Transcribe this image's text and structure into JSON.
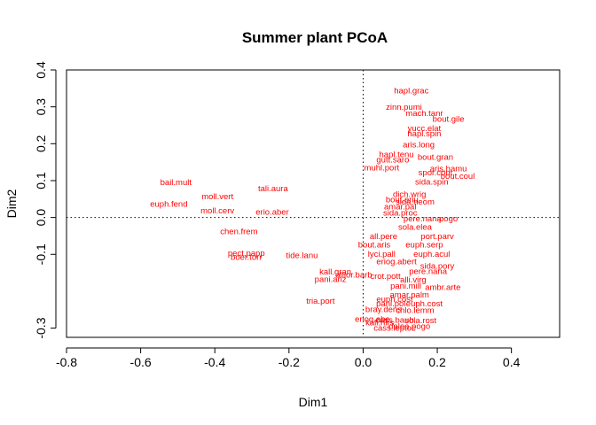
{
  "chart_data": {
    "type": "scatter",
    "title": "Summer plant PCoA",
    "xlabel": "Dim1",
    "ylabel": "Dim2",
    "xlim": [
      -0.8,
      0.53
    ],
    "ylim": [
      -0.325,
      0.4
    ],
    "xticks": [
      -0.8,
      -0.6,
      -0.4,
      -0.2,
      0.0,
      0.2,
      0.4
    ],
    "xtick_labels": [
      "-0.8",
      "-0.6",
      "-0.4",
      "-0.2",
      "0.0",
      "0.2",
      "0.4"
    ],
    "yticks": [
      -0.3,
      -0.1,
      0.0,
      0.1,
      0.2,
      0.3,
      0.4
    ],
    "ytick_labels": [
      "-0.3",
      "-0.1",
      "0.0",
      "0.1",
      "0.2",
      "0.3",
      "0.4"
    ],
    "reference_lines": {
      "x": 0,
      "y": 0,
      "style": "dotted"
    },
    "grid": false,
    "label_color": "#ff0000",
    "points": [
      {
        "label": "hapl.grac",
        "x": 0.13,
        "y": 0.345
      },
      {
        "label": "zinn.pumi",
        "x": 0.11,
        "y": 0.3
      },
      {
        "label": "mach.tanr",
        "x": 0.165,
        "y": 0.283
      },
      {
        "label": "bout.gile",
        "x": 0.23,
        "y": 0.268
      },
      {
        "label": "yucc.elat",
        "x": 0.165,
        "y": 0.243
      },
      {
        "label": "hapl.spin",
        "x": 0.165,
        "y": 0.228
      },
      {
        "label": "aris.long",
        "x": 0.15,
        "y": 0.198
      },
      {
        "label": "hapl.tenu",
        "x": 0.09,
        "y": 0.172
      },
      {
        "label": "gutt.saro",
        "x": 0.08,
        "y": 0.157
      },
      {
        "label": "bout.gran",
        "x": 0.195,
        "y": 0.165
      },
      {
        "label": "muhl.port",
        "x": 0.05,
        "y": 0.136
      },
      {
        "label": "aris.hamu",
        "x": 0.23,
        "y": 0.133
      },
      {
        "label": "spor.cont",
        "x": 0.195,
        "y": 0.123
      },
      {
        "label": "bout.coul",
        "x": 0.255,
        "y": 0.113
      },
      {
        "label": "sida.spin",
        "x": 0.185,
        "y": 0.097
      },
      {
        "label": "bail.mult",
        "x": -0.505,
        "y": 0.096
      },
      {
        "label": "tali.aura",
        "x": -0.243,
        "y": 0.079
      },
      {
        "label": "moll.vert",
        "x": -0.393,
        "y": 0.058
      },
      {
        "label": "dich.wrig",
        "x": 0.125,
        "y": 0.064
      },
      {
        "label": "bout.eriu",
        "x": 0.105,
        "y": 0.05
      },
      {
        "label": "sida.neom",
        "x": 0.14,
        "y": 0.044
      },
      {
        "label": "amar.pal",
        "x": 0.1,
        "y": 0.03
      },
      {
        "label": "euph.fend",
        "x": -0.524,
        "y": 0.038
      },
      {
        "label": "moll.cerv",
        "x": -0.393,
        "y": 0.02
      },
      {
        "label": "erio.aber",
        "x": -0.245,
        "y": 0.016
      },
      {
        "label": "sida.proc",
        "x": 0.1,
        "y": 0.013
      },
      {
        "label": "pere.nana",
        "x": 0.16,
        "y": -0.002
      },
      {
        "label": "pogo",
        "x": 0.23,
        "y": -0.002
      },
      {
        "label": "sola.elea",
        "x": 0.14,
        "y": -0.025
      },
      {
        "label": "chen.frem",
        "x": -0.335,
        "y": -0.037
      },
      {
        "label": "all.pere",
        "x": 0.055,
        "y": -0.05
      },
      {
        "label": "port.parv",
        "x": 0.2,
        "y": -0.05
      },
      {
        "label": "bout.aris",
        "x": 0.03,
        "y": -0.073
      },
      {
        "label": "euph.serp",
        "x": 0.165,
        "y": -0.073
      },
      {
        "label": "lyci.pall",
        "x": 0.05,
        "y": -0.098
      },
      {
        "label": "euph.acul",
        "x": 0.185,
        "y": -0.098
      },
      {
        "label": "pect.papp",
        "x": -0.315,
        "y": -0.096
      },
      {
        "label": "boer.torr",
        "x": -0.315,
        "y": -0.106
      },
      {
        "label": "tide.lanu",
        "x": -0.165,
        "y": -0.102
      },
      {
        "label": "eriog.abert",
        "x": 0.09,
        "y": -0.118
      },
      {
        "label": "sida.pory",
        "x": 0.2,
        "y": -0.13
      },
      {
        "label": "kall.gran",
        "x": -0.075,
        "y": -0.146
      },
      {
        "label": "allior.barb",
        "x": -0.025,
        "y": -0.155
      },
      {
        "label": "pani.ariz",
        "x": -0.088,
        "y": -0.167
      },
      {
        "label": "pere.nana",
        "x": 0.175,
        "y": -0.145
      },
      {
        "label": "crot.pott",
        "x": 0.06,
        "y": -0.158
      },
      {
        "label": "alli.virg",
        "x": 0.135,
        "y": -0.168
      },
      {
        "label": "pani.mill",
        "x": 0.115,
        "y": -0.185
      },
      {
        "label": "ambr.arte",
        "x": 0.215,
        "y": -0.188
      },
      {
        "label": "amar.palm",
        "x": 0.125,
        "y": -0.208
      },
      {
        "label": "euph.cost",
        "x": 0.085,
        "y": -0.22
      },
      {
        "label": "tria.port",
        "x": -0.115,
        "y": -0.225
      },
      {
        "label": "pani.pol",
        "x": 0.075,
        "y": -0.232
      },
      {
        "label": "euph.cost",
        "x": 0.165,
        "y": -0.232
      },
      {
        "label": "bray.dens",
        "x": 0.055,
        "y": -0.248
      },
      {
        "label": "chlo.lemm",
        "x": 0.14,
        "y": -0.25
      },
      {
        "label": "eriog.abe",
        "x": 0.025,
        "y": -0.275
      },
      {
        "label": "kall.hirs",
        "x": 0.045,
        "y": -0.284
      },
      {
        "label": "cass.bauh",
        "x": 0.085,
        "y": -0.277
      },
      {
        "label": "sola.rost",
        "x": 0.155,
        "y": -0.278
      },
      {
        "label": "dalea.pogo",
        "x": 0.125,
        "y": -0.294
      },
      {
        "label": "cass.leptoc",
        "x": 0.085,
        "y": -0.298
      }
    ]
  }
}
